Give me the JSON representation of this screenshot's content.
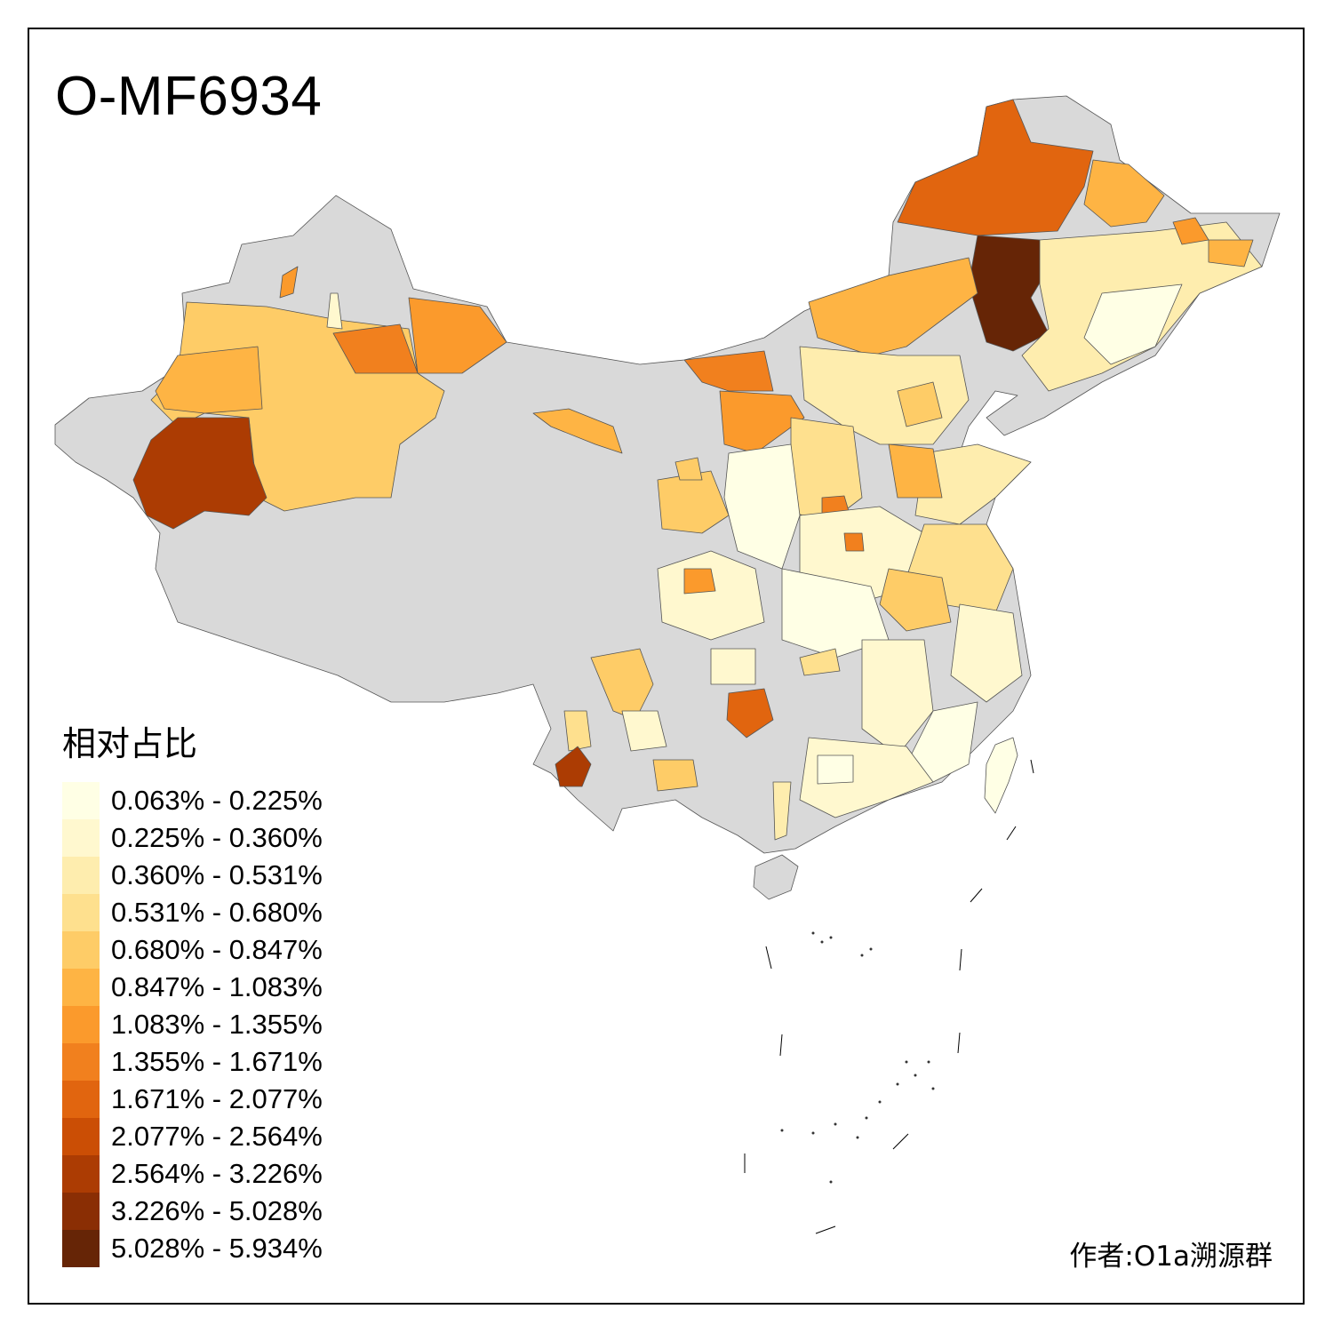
{
  "title": "O-MF6934",
  "legend": {
    "title": "相对占比",
    "items": [
      {
        "label": "0.063% - 0.225%",
        "color": "#FFFFE5"
      },
      {
        "label": "0.225% - 0.360%",
        "color": "#FFF8CF"
      },
      {
        "label": "0.360% - 0.531%",
        "color": "#FEEDAE"
      },
      {
        "label": "0.531% - 0.680%",
        "color": "#FEE08E"
      },
      {
        "label": "0.680% - 0.847%",
        "color": "#FECC67"
      },
      {
        "label": "0.847% - 1.083%",
        "color": "#FEB444"
      },
      {
        "label": "1.083% - 1.355%",
        "color": "#FB9A2C"
      },
      {
        "label": "1.355% - 1.671%",
        "color": "#F1801E"
      },
      {
        "label": "1.671% - 2.077%",
        "color": "#E1650F"
      },
      {
        "label": "2.077% - 2.564%",
        "color": "#CB4E05"
      },
      {
        "label": "2.564% - 3.226%",
        "color": "#AC3C03"
      },
      {
        "label": "3.226% - 5.028%",
        "color": "#8A2E04"
      },
      {
        "label": "5.028% - 5.934%",
        "color": "#662506"
      }
    ]
  },
  "no_data_color": "#D9D9D9",
  "credit": "作者:O1a溯源群"
}
